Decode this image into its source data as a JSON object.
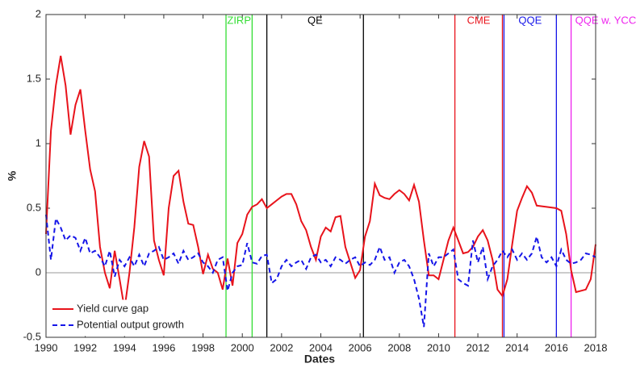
{
  "chart_data": {
    "type": "line",
    "xlabel": "Dates",
    "ylabel": "%",
    "xlim": [
      1990,
      2018
    ],
    "ylim": [
      -0.5,
      2
    ],
    "xticks": [
      1990,
      1992,
      1994,
      1996,
      1998,
      2000,
      2002,
      2004,
      2006,
      2008,
      2010,
      2012,
      2014,
      2016,
      2018
    ],
    "yticks": [
      -0.5,
      0,
      0.5,
      1,
      1.5,
      2
    ],
    "legend": "lower left",
    "series": [
      {
        "name": "Yield curve gap",
        "color": "#e8131b",
        "dash": false,
        "x": [
          1990,
          1990.25,
          1990.5,
          1990.75,
          1991,
          1991.25,
          1991.5,
          1991.75,
          1992,
          1992.25,
          1992.5,
          1992.75,
          1993,
          1993.25,
          1993.5,
          1993.75,
          1994,
          1994.25,
          1994.5,
          1994.75,
          1995,
          1995.25,
          1995.5,
          1995.75,
          1996,
          1996.25,
          1996.5,
          1996.75,
          1997,
          1997.25,
          1997.5,
          1997.75,
          1998,
          1998.25,
          1998.5,
          1998.75,
          1999,
          1999.25,
          1999.5,
          1999.75,
          2000,
          2000.25,
          2000.5,
          2000.75,
          2001,
          2001.25,
          2001.5,
          2001.75,
          2002,
          2002.25,
          2002.5,
          2002.75,
          2003,
          2003.25,
          2003.5,
          2003.75,
          2004,
          2004.25,
          2004.5,
          2004.75,
          2005,
          2005.25,
          2005.5,
          2005.75,
          2006,
          2006.25,
          2006.5,
          2006.75,
          2007,
          2007.25,
          2007.5,
          2007.75,
          2008,
          2008.25,
          2008.5,
          2008.75,
          2009,
          2009.25,
          2009.5,
          2009.75,
          2010,
          2010.25,
          2010.5,
          2010.75,
          2011,
          2011.25,
          2011.5,
          2011.75,
          2012,
          2012.25,
          2012.5,
          2012.75,
          2013,
          2013.25,
          2013.5,
          2013.75,
          2014,
          2014.25,
          2014.5,
          2014.75,
          2015,
          2015.5,
          2016,
          2016.25,
          2016.5,
          2016.75,
          2017,
          2017.5,
          2017.75,
          2018
        ],
        "values": [
          0.3,
          1.1,
          1.45,
          1.68,
          1.45,
          1.07,
          1.3,
          1.42,
          1.1,
          0.8,
          0.63,
          0.2,
          0.0,
          -0.12,
          0.17,
          -0.05,
          -0.28,
          0.0,
          0.35,
          0.82,
          1.02,
          0.9,
          0.25,
          0.1,
          -0.02,
          0.5,
          0.75,
          0.79,
          0.55,
          0.38,
          0.37,
          0.2,
          -0.01,
          0.14,
          0.03,
          0.0,
          -0.13,
          0.11,
          -0.1,
          0.23,
          0.3,
          0.45,
          0.51,
          0.53,
          0.57,
          0.5,
          0.53,
          0.56,
          0.59,
          0.61,
          0.61,
          0.53,
          0.4,
          0.33,
          0.2,
          0.1,
          0.28,
          0.35,
          0.32,
          0.43,
          0.44,
          0.2,
          0.08,
          -0.04,
          0.02,
          0.28,
          0.4,
          0.69,
          0.6,
          0.58,
          0.57,
          0.61,
          0.64,
          0.61,
          0.56,
          0.68,
          0.55,
          0.25,
          -0.02,
          -0.02,
          -0.05,
          0.1,
          0.25,
          0.35,
          0.25,
          0.15,
          0.16,
          0.2,
          0.28,
          0.33,
          0.25,
          0.1,
          -0.13,
          -0.18,
          -0.05,
          0.22,
          0.48,
          0.58,
          0.67,
          0.62,
          0.52,
          0.51,
          0.5,
          0.48,
          0.3,
          0.02,
          -0.15,
          -0.13,
          -0.05,
          0.22
        ]
      },
      {
        "name": "Potential output growth",
        "color": "#1515e8",
        "dash": true,
        "x": [
          1990,
          1990.25,
          1990.5,
          1990.75,
          1991,
          1991.25,
          1991.5,
          1991.75,
          1992,
          1992.25,
          1992.5,
          1992.75,
          1993,
          1993.25,
          1993.5,
          1993.75,
          1994,
          1994.25,
          1994.5,
          1994.75,
          1995,
          1995.25,
          1995.5,
          1995.75,
          1996,
          1996.25,
          1996.5,
          1996.75,
          1997,
          1997.25,
          1997.5,
          1997.75,
          1998,
          1998.25,
          1998.5,
          1998.75,
          1999,
          1999.25,
          1999.5,
          1999.75,
          2000,
          2000.25,
          2000.5,
          2000.75,
          2001,
          2001.25,
          2001.5,
          2001.75,
          2002,
          2002.25,
          2002.5,
          2002.75,
          2003,
          2003.25,
          2003.5,
          2003.75,
          2004,
          2004.25,
          2004.5,
          2004.75,
          2005,
          2005.25,
          2005.5,
          2005.75,
          2006,
          2006.25,
          2006.5,
          2006.75,
          2007,
          2007.25,
          2007.5,
          2007.75,
          2008,
          2008.25,
          2008.5,
          2008.75,
          2009,
          2009.25,
          2009.5,
          2009.75,
          2010,
          2010.25,
          2010.5,
          2010.75,
          2011,
          2011.25,
          2011.5,
          2011.75,
          2012,
          2012.25,
          2012.5,
          2012.75,
          2013,
          2013.25,
          2013.5,
          2013.75,
          2014,
          2014.25,
          2014.5,
          2014.75,
          2015,
          2015.25,
          2015.5,
          2015.75,
          2016,
          2016.25,
          2016.5,
          2016.75,
          2017,
          2017.25,
          2017.5,
          2017.75,
          2018
        ],
        "values": [
          0.45,
          0.1,
          0.42,
          0.35,
          0.25,
          0.29,
          0.27,
          0.17,
          0.27,
          0.15,
          0.17,
          0.12,
          0.05,
          0.17,
          -0.03,
          0.1,
          0.05,
          0.12,
          0.05,
          0.14,
          0.05,
          0.15,
          0.17,
          0.2,
          0.1,
          0.12,
          0.15,
          0.07,
          0.17,
          0.1,
          0.12,
          0.15,
          0.08,
          0.05,
          0.0,
          0.1,
          0.12,
          -0.14,
          0.0,
          0.05,
          0.06,
          0.23,
          0.08,
          0.07,
          0.13,
          0.14,
          -0.08,
          -0.05,
          0.05,
          0.1,
          0.05,
          0.08,
          0.1,
          0.03,
          0.12,
          0.14,
          0.08,
          0.1,
          0.05,
          0.12,
          0.1,
          0.07,
          0.1,
          0.12,
          0.05,
          0.08,
          0.06,
          0.1,
          0.2,
          0.1,
          0.12,
          0.0,
          0.08,
          0.1,
          0.05,
          -0.05,
          -0.2,
          -0.42,
          0.15,
          0.05,
          0.12,
          0.12,
          0.15,
          0.18,
          -0.05,
          -0.08,
          -0.1,
          0.25,
          0.08,
          0.2,
          -0.05,
          0.05,
          0.1,
          0.17,
          0.12,
          0.18,
          0.1,
          0.15,
          0.1,
          0.15,
          0.28,
          0.12,
          0.08,
          0.12,
          0.05,
          0.18,
          0.1,
          0.07,
          0.08,
          0.1,
          0.15,
          0.14,
          0.12
        ]
      }
    ],
    "events": [
      {
        "label": "ZIRP",
        "color": "#33dd33",
        "x": [
          1999.17,
          2000.5
        ]
      },
      {
        "label": "QE",
        "color": "#000000",
        "x": [
          2001.25,
          2006.17
        ]
      },
      {
        "label": "CME",
        "color": "#e8131b",
        "x": [
          2010.83,
          2013.25
        ]
      },
      {
        "label": "QQE",
        "color": "#1515e8",
        "x": [
          2013.33,
          2016.0
        ]
      },
      {
        "label": "QQE w. YCC",
        "color": "#ee22ee",
        "x": [
          2016.75
        ]
      }
    ]
  }
}
